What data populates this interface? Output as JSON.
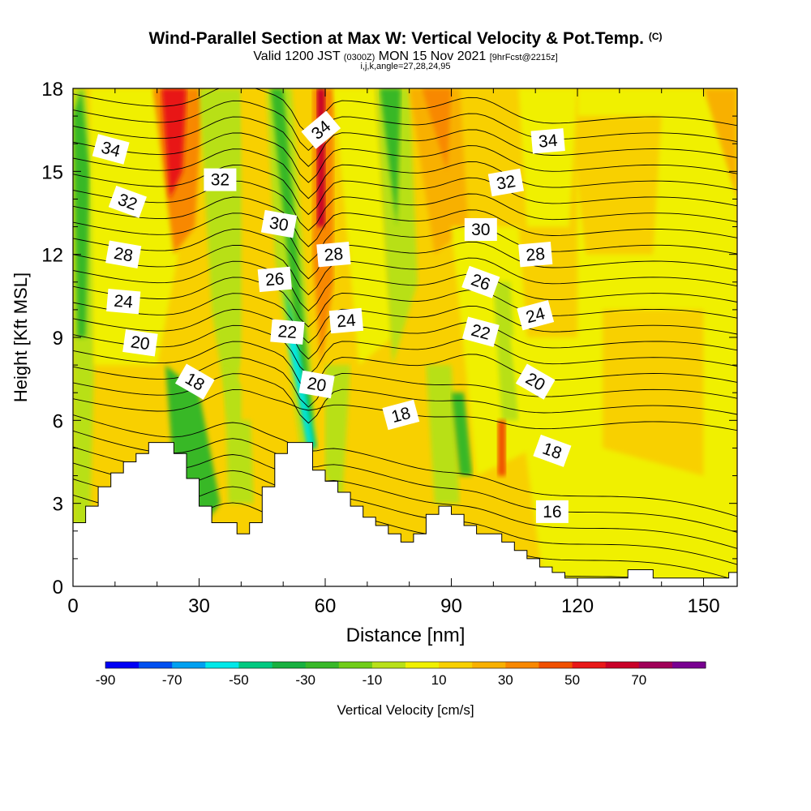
{
  "header": {
    "title": "Wind-Parallel Section at Max W: Vertical Velocity & Pot.Temp.",
    "title_mark": "(C)",
    "valid_prefix": "Valid 1200 JST",
    "valid_utc": "(0300Z)",
    "valid_date": "MON 15 Nov 2021",
    "forecast": "[9hrFcst@2215z]",
    "indices": "i,j,k,angle=27,28,24,95"
  },
  "chart_data": {
    "type": "heatmap",
    "xlabel": "Distance [nm]",
    "ylabel": "Height [Kft MSL]",
    "xlim": [
      0,
      158
    ],
    "ylim": [
      0,
      18
    ],
    "x_ticks": [
      "0",
      "30",
      "60",
      "90",
      "120",
      "150"
    ],
    "y_ticks": [
      "0",
      "3",
      "6",
      "9",
      "12",
      "15",
      "18"
    ],
    "colorbar": {
      "label": "Vertical Velocity [cm/s]",
      "tick_labels": [
        "-90",
        "-70",
        "-50",
        "-30",
        "-10",
        "10",
        "30",
        "50",
        "70"
      ],
      "levels": [
        -90,
        -80,
        -70,
        -60,
        -50,
        -40,
        -30,
        -20,
        -10,
        0,
        10,
        20,
        30,
        40,
        50,
        60,
        70,
        80
      ],
      "colors": [
        "#0000f5",
        "#0050f0",
        "#00a0f0",
        "#00e8e8",
        "#00c880",
        "#18b040",
        "#38b828",
        "#70cc18",
        "#b8e018",
        "#f0f000",
        "#f8d000",
        "#f8b000",
        "#f88800",
        "#f05000",
        "#e81818",
        "#c80028",
        "#a00058",
        "#780090"
      ]
    },
    "terrain": {
      "x": [
        0,
        3,
        3,
        6,
        6,
        9,
        9,
        12,
        12,
        15,
        15,
        18,
        18,
        21,
        21,
        24,
        24,
        27,
        27,
        30,
        30,
        33,
        33,
        39,
        39,
        42,
        42,
        45,
        45,
        48,
        48,
        51,
        51,
        54,
        54,
        57,
        57,
        60,
        60,
        63,
        63,
        66,
        66,
        69,
        69,
        72,
        72,
        75,
        75,
        78,
        78,
        81,
        81,
        84,
        84,
        87,
        87,
        90,
        90,
        93,
        93,
        96,
        96,
        99,
        99,
        102,
        102,
        105,
        105,
        108,
        108,
        111,
        111,
        114,
        114,
        117,
        117,
        120,
        120,
        126,
        126,
        132,
        132,
        138,
        138,
        144,
        144,
        150,
        150,
        156,
        156,
        158
      ],
      "height_kft": [
        2.3,
        2.3,
        2.9,
        2.9,
        3.6,
        3.6,
        4.1,
        4.1,
        4.5,
        4.5,
        4.8,
        4.8,
        5.2,
        5.2,
        5.2,
        5.2,
        4.8,
        4.8,
        3.9,
        3.9,
        2.9,
        2.9,
        2.3,
        2.3,
        1.9,
        1.9,
        2.3,
        2.3,
        3.6,
        3.6,
        4.8,
        4.8,
        5.2,
        5.2,
        5.2,
        5.2,
        4.2,
        4.2,
        3.8,
        3.8,
        3.4,
        3.4,
        2.9,
        2.9,
        2.5,
        2.5,
        2.2,
        2.2,
        1.9,
        1.9,
        1.6,
        1.6,
        1.9,
        1.9,
        2.6,
        2.6,
        2.9,
        2.9,
        2.6,
        2.6,
        2.2,
        2.2,
        1.9,
        1.9,
        1.9,
        1.9,
        1.6,
        1.6,
        1.3,
        1.3,
        1.0,
        1.0,
        0.7,
        0.7,
        0.5,
        0.5,
        0.3,
        0.3,
        0.3,
        0.3,
        0.3,
        0.3,
        0.6,
        0.6,
        0.3,
        0.3,
        0.3,
        0.3,
        0.3,
        0.3,
        0.5,
        0.5
      ]
    },
    "potential_temperature": {
      "contour_labels": [
        {
          "text": "34",
          "x": 9,
          "y_kft": 15.8,
          "angle": 15
        },
        {
          "text": "32",
          "x": 13,
          "y_kft": 13.9,
          "angle": 20
        },
        {
          "text": "28",
          "x": 12,
          "y_kft": 12.0,
          "angle": 10
        },
        {
          "text": "24",
          "x": 12,
          "y_kft": 10.3,
          "angle": 5
        },
        {
          "text": "20",
          "x": 16,
          "y_kft": 8.8,
          "angle": 8
        },
        {
          "text": "18",
          "x": 29,
          "y_kft": 7.4,
          "angle": 30
        },
        {
          "text": "32",
          "x": 35,
          "y_kft": 14.7,
          "angle": 0
        },
        {
          "text": "30",
          "x": 49,
          "y_kft": 13.1,
          "angle": 10
        },
        {
          "text": "26",
          "x": 48,
          "y_kft": 11.1,
          "angle": -5
        },
        {
          "text": "22",
          "x": 51,
          "y_kft": 9.2,
          "angle": 5
        },
        {
          "text": "20",
          "x": 58,
          "y_kft": 7.3,
          "angle": 10
        },
        {
          "text": "34",
          "x": 59,
          "y_kft": 16.5,
          "angle": -40
        },
        {
          "text": "28",
          "x": 62,
          "y_kft": 12.0,
          "angle": -5
        },
        {
          "text": "24",
          "x": 65,
          "y_kft": 9.6,
          "angle": -5
        },
        {
          "text": "18",
          "x": 78,
          "y_kft": 6.2,
          "angle": -15
        },
        {
          "text": "30",
          "x": 97,
          "y_kft": 12.9,
          "angle": 0
        },
        {
          "text": "32",
          "x": 103,
          "y_kft": 14.6,
          "angle": -10
        },
        {
          "text": "34",
          "x": 113,
          "y_kft": 16.1,
          "angle": -5
        },
        {
          "text": "26",
          "x": 97,
          "y_kft": 11.0,
          "angle": 20
        },
        {
          "text": "22",
          "x": 97,
          "y_kft": 9.2,
          "angle": 15
        },
        {
          "text": "28",
          "x": 110,
          "y_kft": 12.0,
          "angle": -5
        },
        {
          "text": "24",
          "x": 110,
          "y_kft": 9.8,
          "angle": -15
        },
        {
          "text": "20",
          "x": 110,
          "y_kft": 7.4,
          "angle": 30
        },
        {
          "text": "18",
          "x": 114,
          "y_kft": 4.9,
          "angle": 20
        },
        {
          "text": "16",
          "x": 114,
          "y_kft": 2.7,
          "angle": 0
        }
      ]
    }
  }
}
